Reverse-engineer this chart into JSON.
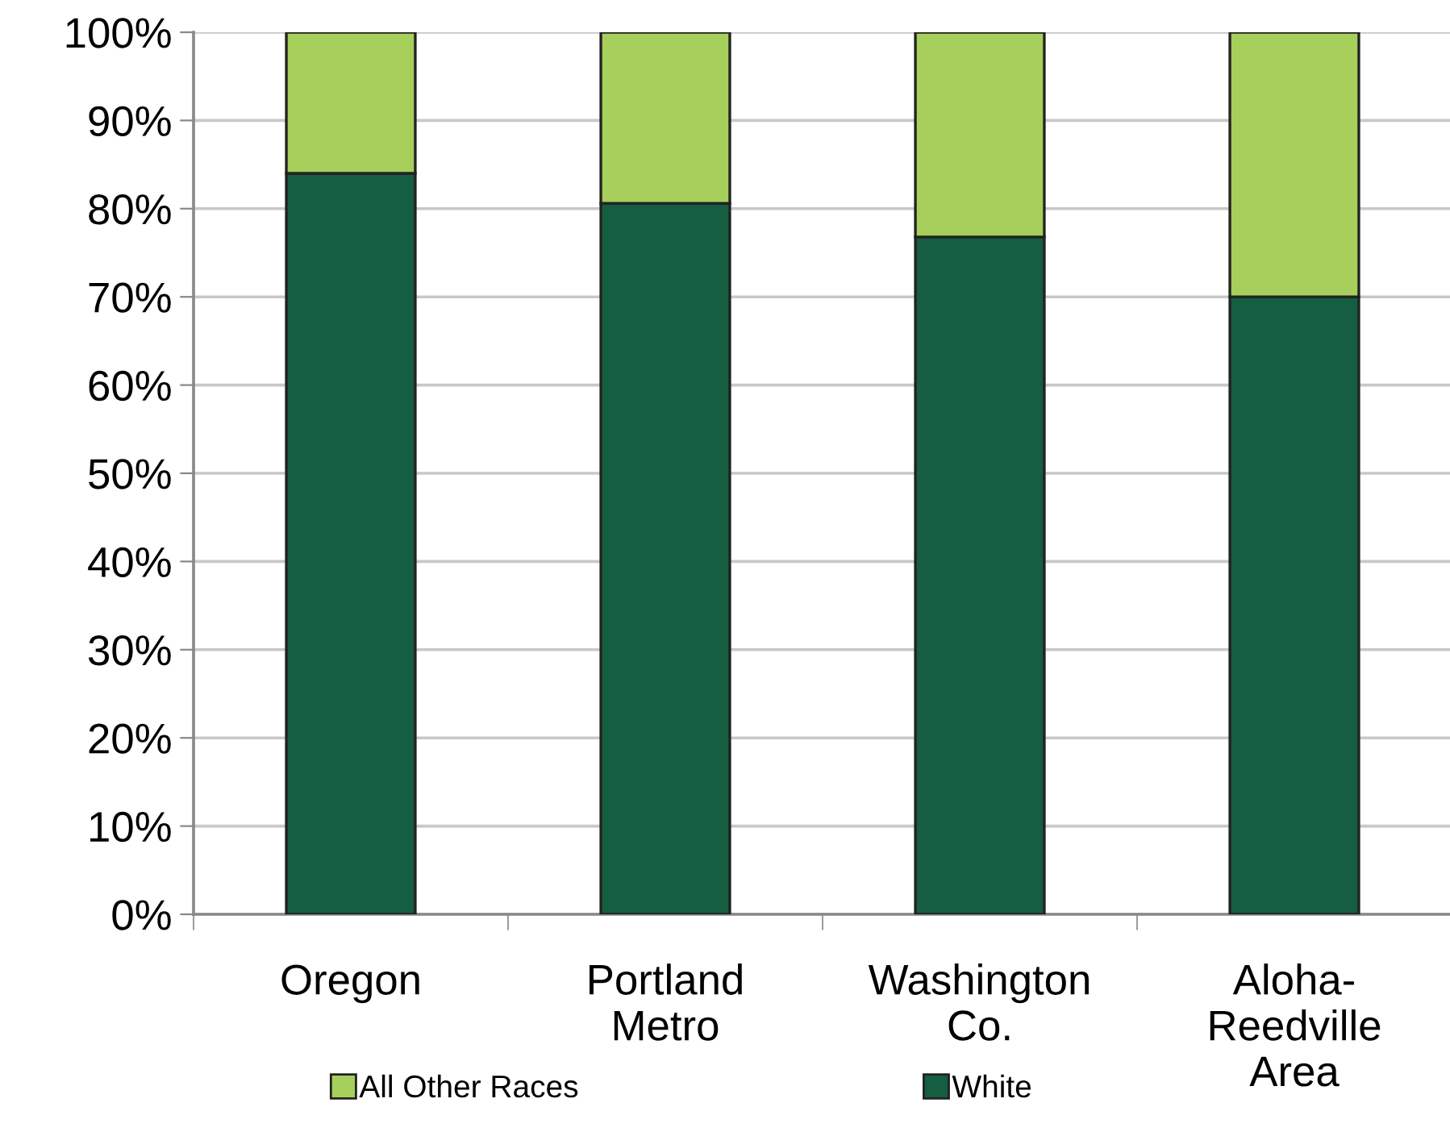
{
  "chart_data": {
    "type": "bar",
    "stacked": true,
    "categories": [
      "Oregon",
      "Portland\nMetro",
      "Washington\nCo.",
      "Aloha-\nReedville\nArea"
    ],
    "series": [
      {
        "name": "White",
        "color": "#155e41",
        "values": [
          84,
          80.6,
          76.8,
          70
        ]
      },
      {
        "name": "All Other Races",
        "color": "#a6cf5b",
        "values": [
          16,
          19.4,
          23.2,
          30
        ]
      }
    ],
    "ylim": [
      0,
      100
    ],
    "yticks": [
      {
        "value": 0,
        "label": "0%"
      },
      {
        "value": 10,
        "label": "10%"
      },
      {
        "value": 20,
        "label": "20%"
      },
      {
        "value": 30,
        "label": "30%"
      },
      {
        "value": 40,
        "label": "40%"
      },
      {
        "value": 50,
        "label": "50%"
      },
      {
        "value": 60,
        "label": "60%"
      },
      {
        "value": 70,
        "label": "70%"
      },
      {
        "value": 80,
        "label": "80%"
      },
      {
        "value": 90,
        "label": "90%"
      },
      {
        "value": 100,
        "label": "100%"
      }
    ],
    "grid": "y",
    "legend": "bottom"
  }
}
